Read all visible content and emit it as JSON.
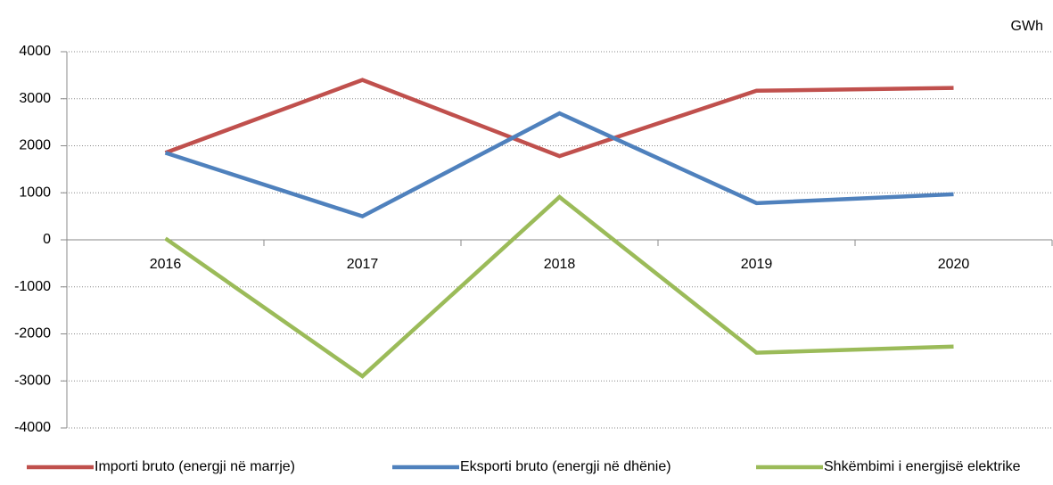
{
  "chart_data": {
    "type": "line",
    "unit_label": "GWh",
    "categories": [
      "2016",
      "2017",
      "2018",
      "2019",
      "2020"
    ],
    "series": [
      {
        "name": "Importi bruto (energji në marrje)",
        "color": "#c0504d",
        "values": [
          1850,
          3400,
          1780,
          3170,
          3230
        ]
      },
      {
        "name": "Eksporti bruto (energji në dhënie)",
        "color": "#4f81bd",
        "values": [
          1850,
          500,
          2690,
          780,
          970
        ]
      },
      {
        "name": "Shkëmbimi i energjisë elektrike",
        "color": "#9bbb59",
        "values": [
          30,
          -2900,
          910,
          -2400,
          -2270
        ]
      }
    ],
    "ylim": [
      -4000,
      4000
    ],
    "yticks": [
      -4000,
      -3000,
      -2000,
      -1000,
      0,
      1000,
      2000,
      3000,
      4000
    ],
    "grid": true,
    "legend": "bottom"
  }
}
